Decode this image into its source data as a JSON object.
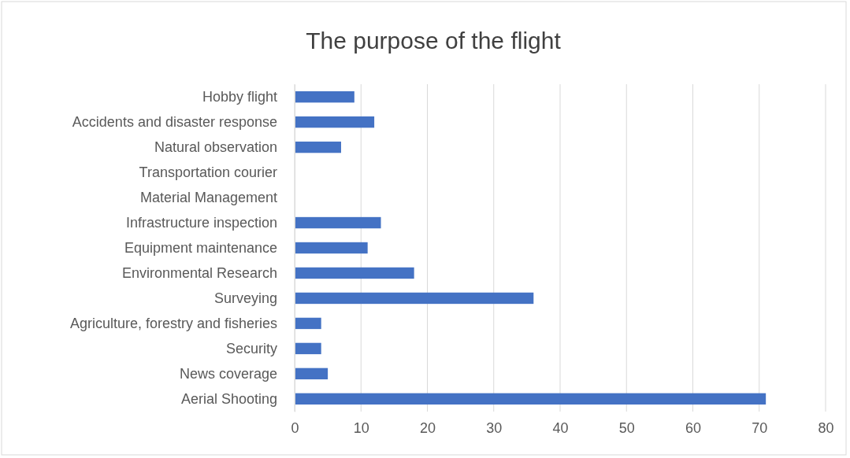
{
  "chart_data": {
    "type": "bar",
    "orientation": "horizontal",
    "title": "The purpose of the flight",
    "categories": [
      "Hobby flight",
      "Accidents and disaster response",
      "Natural observation",
      "Transportation courier",
      "Material Management",
      "Infrastructure inspection",
      "Equipment maintenance",
      "Environmental Research",
      "Surveying",
      "Agriculture, forestry and fisheries",
      "Security",
      "News coverage",
      "Aerial Shooting"
    ],
    "values": [
      9,
      12,
      7,
      0,
      0,
      13,
      11,
      18,
      36,
      4,
      4,
      5,
      71
    ],
    "color": "#4472c4",
    "xlim": [
      0,
      80
    ],
    "xticks": [
      0,
      10,
      20,
      30,
      40,
      50,
      60,
      70,
      80
    ],
    "grid": "x"
  }
}
